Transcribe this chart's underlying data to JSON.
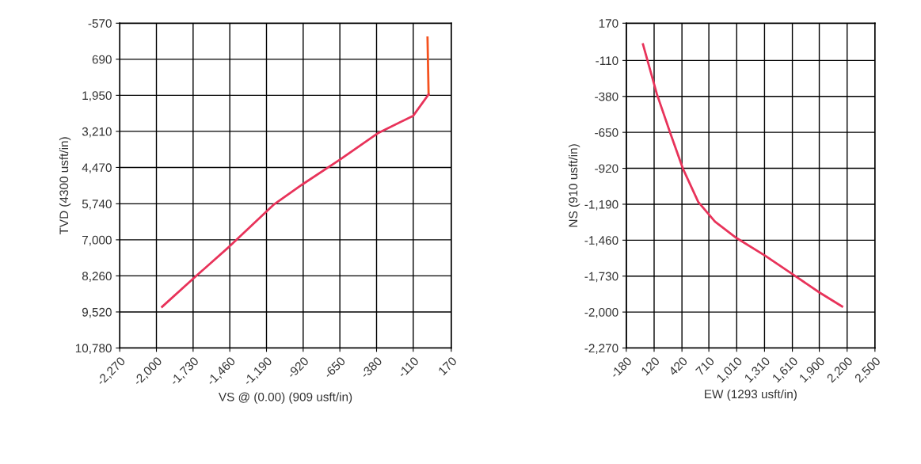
{
  "chart_data": [
    {
      "type": "line",
      "xlabel": "VS @ (0.00) (909 usft/in)",
      "ylabel": "TVD (4300 usft/in)",
      "grid": true,
      "legend": false,
      "marker": "none",
      "line_style": "solid",
      "xlim": [
        -2270,
        170
      ],
      "ylim": [
        10780,
        -570
      ],
      "xticks": [
        {
          "value": -2270,
          "label": "-2,270"
        },
        {
          "value": -2000,
          "label": "-2,000"
        },
        {
          "value": -1730,
          "label": "-1,730"
        },
        {
          "value": -1460,
          "label": "-1,460"
        },
        {
          "value": -1190,
          "label": "-1,190"
        },
        -920,
        -650,
        -380,
        -110,
        170
      ],
      "yticks": [
        -570,
        690,
        {
          "value": 1950,
          "label": "1,950"
        },
        {
          "value": 3210,
          "label": "3,210"
        },
        {
          "value": 4470,
          "label": "4,470"
        },
        {
          "value": 5740,
          "label": "5,740"
        },
        {
          "value": 7000,
          "label": "7,000"
        },
        {
          "value": 8260,
          "label": "8,260"
        },
        {
          "value": 9520,
          "label": "9,520"
        },
        {
          "value": 10780,
          "label": "10,780"
        }
      ],
      "series": [
        {
          "color": "#f4511e",
          "x": [
            -5,
            3
          ],
          "values": [
            -70,
            1920
          ]
        },
        {
          "color": "#e8335a",
          "x": [
            3,
            -110,
            -365,
            -650,
            -920,
            -1134,
            -1460,
            -1730,
            -1958
          ],
          "values": [
            1920,
            2664,
            3260,
            4200,
            5045,
            5760,
            7220,
            8360,
            9340
          ]
        }
      ]
    },
    {
      "type": "line",
      "xlabel": "EW (1293 usft/in)",
      "ylabel": "NS (910 usft/in)",
      "grid": true,
      "legend": false,
      "marker": "none",
      "line_style": "solid",
      "xlim": [
        -180,
        2500
      ],
      "ylim": [
        -2270,
        170
      ],
      "xticks": [
        -180,
        120,
        420,
        710,
        {
          "value": 1010,
          "label": "1,010"
        },
        {
          "value": 1310,
          "label": "1,310"
        },
        {
          "value": 1610,
          "label": "1,610"
        },
        {
          "value": 1900,
          "label": "1,900"
        },
        {
          "value": 2200,
          "label": "2,200"
        },
        {
          "value": 2500,
          "label": "2,500"
        }
      ],
      "yticks": [
        170,
        -110,
        -380,
        -650,
        -920,
        {
          "value": -1190,
          "label": "-1,190"
        },
        {
          "value": -1460,
          "label": "-1,460"
        },
        {
          "value": -1730,
          "label": "-1,730"
        },
        {
          "value": -2000,
          "label": "-2,000"
        },
        {
          "value": -2270,
          "label": "-2,270"
        }
      ],
      "series": [
        {
          "color": "#e8335a",
          "x": [
            0,
            150,
            300,
            429,
            596,
            776,
            1010,
            1316,
            1610,
            1900,
            2146
          ],
          "values": [
            12,
            -363,
            -667,
            -920,
            -1173,
            -1321,
            -1445,
            -1576,
            -1715,
            -1852,
            -1958
          ]
        }
      ]
    }
  ]
}
